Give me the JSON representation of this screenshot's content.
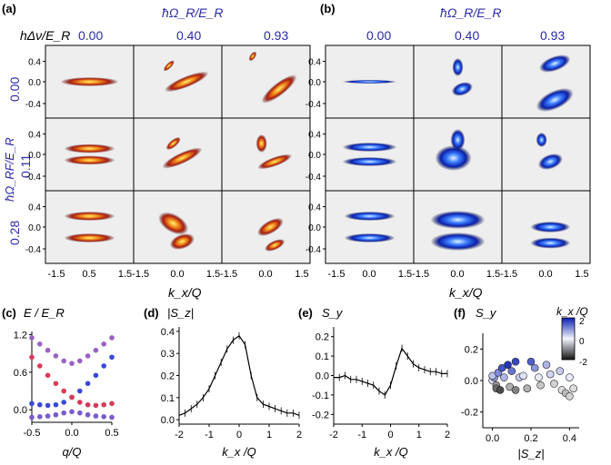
{
  "panel_a": {
    "tag": "(a)",
    "row_axis_label": "hΔν/E_R",
    "col_axis_label": "ħΩ_R/E_R",
    "rf_axis_label": "ħΩ_RF/E_R",
    "col_values": [
      "0.00",
      "0.40",
      "0.93"
    ],
    "row_values": [
      "0.00",
      "0.11",
      "0.28"
    ],
    "y_ticks": [
      "0.4",
      "0.0",
      "-0.4"
    ],
    "x_ticks": [
      "-1.5",
      "0.5",
      "1.5-1.5",
      "0.0",
      "1.5-1.5",
      "0.0",
      "1.5"
    ],
    "x_label": "k_x/Q"
  },
  "panel_b": {
    "tag": "(b)",
    "col_axis_label": "ħΩ_R/E_R",
    "col_values": [
      "0.00",
      "0.40",
      "0.93"
    ],
    "y_ticks": [
      "0.4",
      "0.0",
      "-0.4"
    ],
    "x_ticks": [
      "-1.5",
      "0.0",
      "1.5-1.5",
      "0.0",
      "1.5-1.5",
      "0.0",
      "1.5"
    ],
    "x_label": "k_x/Q"
  },
  "colors": {
    "accent_blue": "#2a2aa8",
    "warm_map": "#c0401a",
    "cool_map": "#1a3ad0"
  },
  "chart_data": [
    {
      "id": "c",
      "type": "scatter",
      "title": "(c)",
      "ylabel": "E / E_R",
      "xlabel": "q/Q",
      "xlim": [
        -0.5,
        0.5
      ],
      "ylim": [
        -0.2,
        1.25
      ],
      "y_ticks": [
        "1.2",
        "0.6",
        "0.0"
      ],
      "x_ticks": [
        "-0.5",
        "0.0",
        "0.5"
      ],
      "series": [
        {
          "points": [
            [
              -0.5,
              -0.12
            ],
            [
              -0.4,
              -0.11
            ],
            [
              -0.3,
              -0.1
            ],
            [
              -0.2,
              -0.08
            ],
            [
              -0.1,
              -0.05
            ],
            [
              0,
              -0.03
            ],
            [
              0.1,
              -0.05
            ],
            [
              0.2,
              -0.08
            ],
            [
              0.3,
              -0.1
            ],
            [
              0.4,
              -0.11
            ],
            [
              0.5,
              -0.12
            ]
          ]
        },
        {
          "points": [
            [
              -0.5,
              0.1
            ],
            [
              -0.4,
              0.08
            ],
            [
              -0.3,
              0.07
            ],
            [
              -0.2,
              0.08
            ],
            [
              -0.1,
              0.12
            ],
            [
              0,
              0.2
            ],
            [
              0.1,
              0.3
            ],
            [
              0.2,
              0.42
            ],
            [
              0.3,
              0.55
            ],
            [
              0.4,
              0.7
            ],
            [
              0.5,
              0.84
            ]
          ]
        },
        {
          "points": [
            [
              -0.5,
              0.84
            ],
            [
              -0.4,
              0.7
            ],
            [
              -0.3,
              0.55
            ],
            [
              -0.2,
              0.42
            ],
            [
              -0.1,
              0.3
            ],
            [
              0,
              0.2
            ],
            [
              0.1,
              0.12
            ],
            [
              0.2,
              0.08
            ],
            [
              0.3,
              0.07
            ],
            [
              0.4,
              0.08
            ],
            [
              0.5,
              0.1
            ]
          ]
        },
        {
          "points": [
            [
              -0.5,
              1.15
            ],
            [
              -0.4,
              1.05
            ],
            [
              -0.3,
              0.95
            ],
            [
              -0.2,
              0.86
            ],
            [
              -0.1,
              0.78
            ],
            [
              0,
              0.74
            ],
            [
              0.1,
              0.78
            ],
            [
              0.2,
              0.86
            ],
            [
              0.3,
              0.95
            ],
            [
              0.4,
              1.05
            ],
            [
              0.5,
              1.15
            ]
          ]
        }
      ]
    },
    {
      "id": "d",
      "type": "line",
      "title": "(d)",
      "ylabel": "|S_z|",
      "xlabel": "k_x /Q",
      "xlim": [
        -2,
        2
      ],
      "ylim": [
        -0.02,
        0.42
      ],
      "y_ticks": [
        "0.4",
        "0.3",
        "0.2",
        "0.1",
        "0.0"
      ],
      "x_ticks": [
        "-2",
        "-1",
        "0",
        "1",
        "2"
      ],
      "x": [
        -2,
        -1.8,
        -1.6,
        -1.4,
        -1.2,
        -1.0,
        -0.8,
        -0.6,
        -0.4,
        -0.2,
        0,
        0.2,
        0.4,
        0.6,
        0.8,
        1.0,
        1.2,
        1.4,
        1.6,
        1.8,
        2
      ],
      "y": [
        0.02,
        0.03,
        0.05,
        0.07,
        0.1,
        0.14,
        0.2,
        0.26,
        0.32,
        0.36,
        0.38,
        0.34,
        0.2,
        0.1,
        0.07,
        0.06,
        0.05,
        0.04,
        0.03,
        0.03,
        0.02
      ]
    },
    {
      "id": "e",
      "type": "line",
      "title": "(e)",
      "ylabel": "S_y",
      "xlabel": "k_x /Q",
      "xlim": [
        -2,
        2
      ],
      "ylim": [
        -0.25,
        0.25
      ],
      "y_ticks": [
        "0.2",
        "0.1",
        "0.0",
        "-0.1",
        "-0.2"
      ],
      "x_ticks": [
        "-2",
        "-1",
        "0",
        "1",
        "2"
      ],
      "x": [
        -2,
        -1.8,
        -1.6,
        -1.4,
        -1.2,
        -1.0,
        -0.8,
        -0.6,
        -0.4,
        -0.2,
        0,
        0.2,
        0.4,
        0.6,
        0.8,
        1.0,
        1.2,
        1.4,
        1.6,
        1.8,
        2
      ],
      "y": [
        -0.01,
        -0.01,
        0.0,
        -0.02,
        -0.02,
        -0.03,
        -0.04,
        -0.05,
        -0.08,
        -0.1,
        -0.05,
        0.05,
        0.14,
        0.1,
        0.06,
        0.04,
        0.03,
        0.02,
        0.02,
        0.01,
        0.01
      ]
    },
    {
      "id": "f",
      "type": "scatter",
      "title": "(f)",
      "ylabel": "S_y",
      "xlabel": "|S_z|",
      "xlim": [
        -0.05,
        0.45
      ],
      "ylim": [
        -0.3,
        0.3
      ],
      "y_ticks": [
        "0.2",
        "0.0",
        "-0.2"
      ],
      "x_ticks": [
        "0.0",
        "0.2",
        "0.4"
      ],
      "colorbar_label": "k_x /Q",
      "colorbar_ticks": [
        "2",
        "0",
        "-2"
      ],
      "points": [
        [
          0.0,
          0.0,
          0.3
        ],
        [
          0.01,
          0.02,
          0.8
        ],
        [
          0.02,
          -0.03,
          -0.8
        ],
        [
          0.0,
          0.03,
          0.5
        ],
        [
          0.03,
          0.05,
          1.0
        ],
        [
          0.02,
          -0.05,
          -1.2
        ],
        [
          0.05,
          0.08,
          1.5
        ],
        [
          0.06,
          0.02,
          0.6
        ],
        [
          0.04,
          -0.06,
          -1.5
        ],
        [
          0.08,
          0.1,
          1.8
        ],
        [
          0.1,
          0.06,
          1.2
        ],
        [
          0.09,
          -0.04,
          -0.6
        ],
        [
          0.12,
          0.12,
          1.6
        ],
        [
          0.14,
          0.02,
          0.4
        ],
        [
          0.12,
          -0.06,
          -1.0
        ],
        [
          0.16,
          0.03,
          0.2
        ],
        [
          0.18,
          -0.05,
          -0.6
        ],
        [
          0.2,
          0.12,
          1.4
        ],
        [
          0.22,
          0.08,
          0.9
        ],
        [
          0.24,
          0.02,
          0.1
        ],
        [
          0.25,
          -0.03,
          -0.4
        ],
        [
          0.28,
          0.1,
          0.6
        ],
        [
          0.3,
          0.04,
          0.3
        ],
        [
          0.32,
          -0.02,
          -0.3
        ],
        [
          0.35,
          0.06,
          0.4
        ],
        [
          0.36,
          -0.06,
          -0.2
        ],
        [
          0.38,
          -0.08,
          -0.5
        ],
        [
          0.4,
          -0.1,
          -0.3
        ],
        [
          0.42,
          -0.05,
          -0.2
        ],
        [
          0.4,
          0.02,
          0.1
        ]
      ]
    }
  ]
}
